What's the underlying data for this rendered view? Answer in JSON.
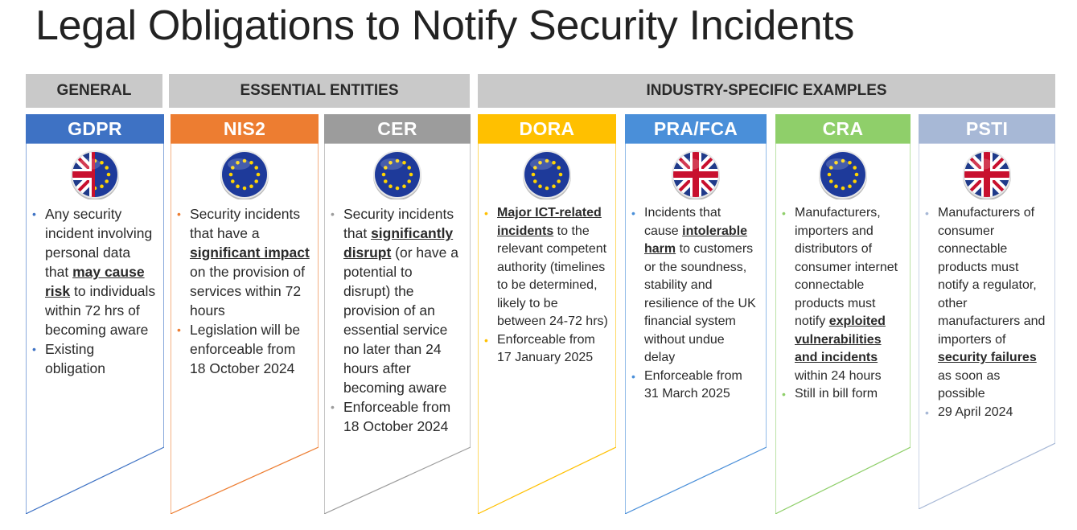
{
  "title": "Legal Obligations to Notify Security Incidents",
  "groups": [
    {
      "label": "GENERAL"
    },
    {
      "label": "ESSENTIAL ENTITIES"
    },
    {
      "label": "INDUSTRY-SPECIFIC EXAMPLES"
    }
  ],
  "columns": [
    {
      "name": "GDPR",
      "color": "#3e72c4",
      "flag": "eu-uk-split-flag-icon",
      "bullets": [
        {
          "parts": [
            {
              "t": "Any security incident involving personal data that "
            },
            {
              "t": "may cause risk",
              "em": true
            },
            {
              "t": " to individuals within 72 hrs of becoming aware"
            }
          ]
        },
        {
          "parts": [
            {
              "t": "Existing obligation"
            }
          ]
        }
      ]
    },
    {
      "name": "NIS2",
      "color": "#ed7d31",
      "flag": "eu-flag-icon",
      "bullets": [
        {
          "parts": [
            {
              "t": "Security incidents that have a "
            },
            {
              "t": "significant impact",
              "em": true
            },
            {
              "t": " on the provision of services within 72 hours"
            }
          ]
        },
        {
          "parts": [
            {
              "t": "Legislation will be enforceable from 18 October 2024"
            }
          ]
        }
      ]
    },
    {
      "name": "CER",
      "color": "#9c9c9c",
      "flag": "eu-flag-icon",
      "bullets": [
        {
          "parts": [
            {
              "t": "Security incidents that "
            },
            {
              "t": "significantly disrupt",
              "em": true
            },
            {
              "t": " (or have a potential to disrupt) the provision of an essential service no later than 24 hours after becoming aware"
            }
          ]
        },
        {
          "parts": [
            {
              "t": "Enforceable from 18 October 2024"
            }
          ]
        }
      ]
    },
    {
      "name": "DORA",
      "color": "#ffc000",
      "flag": "eu-flag-icon",
      "bullets": [
        {
          "parts": [
            {
              "t": "Major ICT-related incidents",
              "em": true
            },
            {
              "t": " to the relevant competent authority (timelines to be determined, likely to be between 24-72 hrs)"
            }
          ]
        },
        {
          "parts": [
            {
              "t": "Enforceable from 17 January 2025"
            }
          ]
        }
      ]
    },
    {
      "name": "PRA/FCA",
      "color": "#4a8fd9",
      "flag": "uk-flag-icon",
      "bullets": [
        {
          "parts": [
            {
              "t": "Incidents that cause "
            },
            {
              "t": "intolerable harm",
              "em": true
            },
            {
              "t": " to customers or the soundness, stability and resilience of the UK financial system without undue delay"
            }
          ]
        },
        {
          "parts": [
            {
              "t": "Enforceable from 31 March 2025"
            }
          ]
        }
      ]
    },
    {
      "name": "CRA",
      "color": "#8fcf6a",
      "flag": "eu-flag-icon",
      "bullets": [
        {
          "parts": [
            {
              "t": "Manufacturers, importers and distributors of consumer internet connectable products must notify "
            },
            {
              "t": "exploited vulnerabilities and incidents",
              "em": true
            },
            {
              "t": " within 24 hours"
            }
          ]
        },
        {
          "parts": [
            {
              "t": "Still in bill form"
            }
          ]
        }
      ]
    },
    {
      "name": "PSTI",
      "color": "#a7b8d6",
      "flag": "uk-flag-icon",
      "bullets": [
        {
          "parts": [
            {
              "t": "Manufacturers of consumer connectable products must notify a regulator, other manufacturers and importers of "
            },
            {
              "t": "security failures",
              "em": true
            },
            {
              "t": " as soon as possible"
            }
          ]
        },
        {
          "parts": [
            {
              "t": "29 April 2024"
            }
          ]
        }
      ]
    }
  ]
}
